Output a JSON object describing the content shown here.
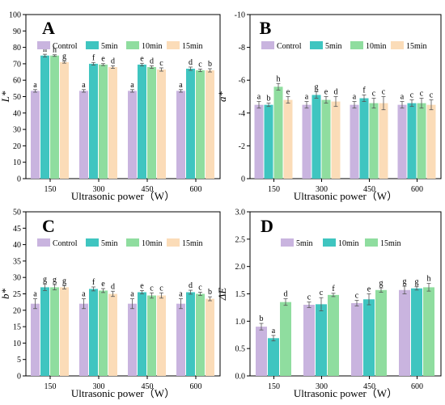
{
  "colors": {
    "Control": "#c9b4df",
    "5min": "#3fc5c0",
    "10min": "#8fdd9f",
    "15min": "#fbdcb8",
    "panel_D": [
      "#c9b4df",
      "#3fc5c0",
      "#8fdd9f"
    ]
  },
  "chart_data": [
    {
      "id": "A",
      "type": "bar",
      "panel_letter": "A",
      "xlabel": "Ultrasonic power（W）",
      "ylabel": "L*",
      "categories": [
        "150",
        "300",
        "450",
        "600"
      ],
      "ylim": [
        0,
        100
      ],
      "yticks": [
        0,
        10,
        20,
        30,
        40,
        50,
        60,
        70,
        80,
        90,
        100
      ],
      "reversed": false,
      "legend_position": "top",
      "series": [
        {
          "name": "Control",
          "values": [
            53.5,
            53.5,
            53.5,
            53.5
          ],
          "errors": [
            0.8,
            0.8,
            0.8,
            0.8
          ],
          "labels": [
            "a",
            "a",
            "a",
            "a"
          ]
        },
        {
          "name": "5min",
          "values": [
            75.0,
            70.0,
            69.5,
            67.0
          ],
          "errors": [
            0.8,
            0.8,
            0.8,
            1.0
          ],
          "labels": [
            "h",
            "f",
            "e",
            "d"
          ]
        },
        {
          "name": "10min",
          "values": [
            75.0,
            69.5,
            68.0,
            66.0
          ],
          "errors": [
            0.5,
            0.6,
            0.8,
            0.8
          ],
          "labels": [
            "h",
            "e",
            "d",
            "c"
          ]
        },
        {
          "name": "15min",
          "values": [
            71.0,
            68.0,
            66.5,
            66.0
          ],
          "errors": [
            0.6,
            0.8,
            1.0,
            1.0
          ],
          "labels": [
            "g",
            "d",
            "c",
            "b"
          ]
        }
      ]
    },
    {
      "id": "B",
      "type": "bar",
      "panel_letter": "B",
      "xlabel": "Ultrasonic power（W）",
      "ylabel": "a*",
      "categories": [
        "150",
        "300",
        "450",
        "600"
      ],
      "ylim": [
        0,
        -10
      ],
      "yticks": [
        0,
        -2,
        -4,
        -6,
        -8,
        -10
      ],
      "reversed": true,
      "legend_position": "top",
      "series": [
        {
          "name": "Control",
          "values": [
            -4.5,
            -4.5,
            -4.5,
            -4.5
          ],
          "errors": [
            0.2,
            0.2,
            0.2,
            0.2
          ],
          "labels": [
            "a",
            "a",
            "a",
            "a"
          ]
        },
        {
          "name": "5min",
          "values": [
            -4.5,
            -5.1,
            -4.9,
            -4.6
          ],
          "errors": [
            0.1,
            0.2,
            0.2,
            0.2
          ],
          "labels": [
            "b",
            "g",
            "f",
            "c"
          ]
        },
        {
          "name": "10min",
          "values": [
            -5.6,
            -4.8,
            -4.6,
            -4.6
          ],
          "errors": [
            0.2,
            0.2,
            0.3,
            0.3
          ],
          "labels": [
            "h",
            "e",
            "c",
            "c"
          ]
        },
        {
          "name": "15min",
          "values": [
            -4.8,
            -4.7,
            -4.6,
            -4.5
          ],
          "errors": [
            0.2,
            0.3,
            0.4,
            0.3
          ],
          "labels": [
            "e",
            "d",
            "c",
            "c"
          ]
        }
      ]
    },
    {
      "id": "C",
      "type": "bar",
      "panel_letter": "C",
      "xlabel": "Ultrasonic power（W）",
      "ylabel": "b*",
      "categories": [
        "150",
        "300",
        "450",
        "600"
      ],
      "ylim": [
        0,
        50
      ],
      "yticks": [
        0,
        5,
        10,
        15,
        20,
        25,
        30,
        35,
        40,
        45,
        50
      ],
      "reversed": false,
      "legend_position": "top",
      "series": [
        {
          "name": "Control",
          "values": [
            22.0,
            22.0,
            22.0,
            22.0
          ],
          "errors": [
            1.5,
            1.5,
            1.5,
            1.5
          ],
          "labels": [
            "a",
            "a",
            "a",
            "a"
          ]
        },
        {
          "name": "5min",
          "values": [
            27.0,
            26.5,
            25.5,
            25.5
          ],
          "errors": [
            1.0,
            0.6,
            0.5,
            0.6
          ],
          "labels": [
            "g",
            "f",
            "e",
            "d"
          ]
        },
        {
          "name": "10min",
          "values": [
            27.0,
            26.0,
            24.5,
            25.0
          ],
          "errors": [
            0.8,
            0.6,
            0.8,
            0.5
          ],
          "labels": [
            "g",
            "e",
            "c",
            "c"
          ]
        },
        {
          "name": "15min",
          "values": [
            27.0,
            25.0,
            24.5,
            23.5
          ],
          "errors": [
            0.5,
            0.8,
            0.8,
            0.6
          ],
          "labels": [
            "g",
            "d",
            "c",
            "b"
          ]
        }
      ]
    },
    {
      "id": "D",
      "type": "bar",
      "panel_letter": "D",
      "xlabel": "Ultrasonic power（W）",
      "ylabel": "ΔE",
      "categories": [
        "150",
        "300",
        "450",
        "600"
      ],
      "ylim": [
        0,
        3.0
      ],
      "yticks": [
        0.0,
        0.5,
        1.0,
        1.5,
        2.0,
        2.5,
        3.0
      ],
      "reversed": false,
      "legend_position": "top",
      "series": [
        {
          "name": "5min",
          "values": [
            0.9,
            1.3,
            1.33,
            1.57
          ],
          "errors": [
            0.06,
            0.05,
            0.05,
            0.07
          ],
          "labels": [
            "b",
            "c",
            "c",
            "g"
          ]
        },
        {
          "name": "10min",
          "values": [
            0.69,
            1.31,
            1.4,
            1.6
          ],
          "errors": [
            0.05,
            0.12,
            0.1,
            0.03
          ],
          "labels": [
            "a",
            "c",
            "e",
            "g"
          ]
        },
        {
          "name": "15min",
          "values": [
            1.35,
            1.48,
            1.57,
            1.62
          ],
          "errors": [
            0.06,
            0.03,
            0.04,
            0.07
          ],
          "labels": [
            "d",
            "f",
            "g",
            "h"
          ]
        }
      ]
    }
  ]
}
